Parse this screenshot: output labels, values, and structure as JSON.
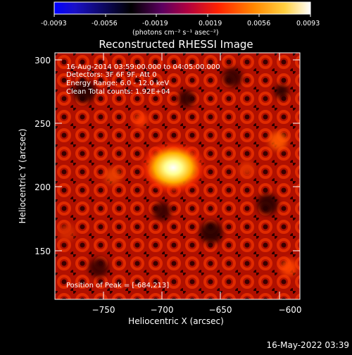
{
  "colorbar": {
    "ticks": [
      "-0.0093",
      "-0.0056",
      "-0.0019",
      "0.0019",
      "0.0056",
      "0.0093"
    ],
    "units": "(photons cm⁻² s⁻¹ asec⁻²)",
    "colors": [
      "#0000ff",
      "#000000",
      "#7a0072",
      "#ff2200",
      "#ffb000",
      "#ffffff"
    ]
  },
  "plot": {
    "title": "Reconstructed RHESSI Image",
    "xlabel": "Heliocentric X (arcsec)",
    "ylabel": "Heliocentric Y (arcsec)",
    "x_ticks": [
      "−750",
      "−700",
      "−650",
      "−600"
    ],
    "y_ticks": [
      "300",
      "250",
      "200",
      "150"
    ],
    "info_lines": [
      "16-Aug-2014 03:59:00.000 to 04:05:00.000",
      "Detectors: 3F 6F 9F, Att 0",
      "Energy Range: 6.0 - 12.0 keV",
      "Clean    Total counts: 1.92E+04"
    ],
    "peak_label": "Position of Peak = [-684,213]"
  },
  "footer": {
    "timestamp": "16-May-2022 03:39"
  }
}
